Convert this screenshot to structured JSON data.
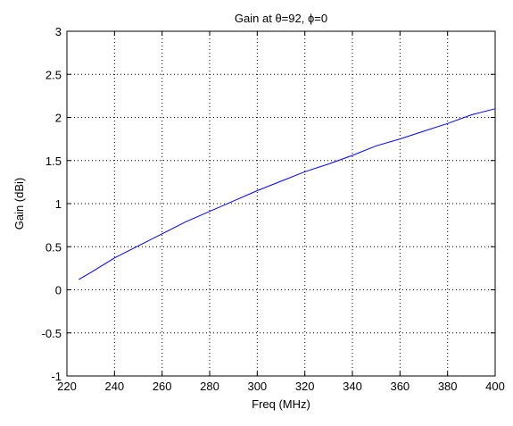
{
  "chart_data": {
    "type": "line",
    "title": "Gain at θ=92, ϕ=0",
    "xlabel": "Freq (MHz)",
    "ylabel": "Gain (dBi)",
    "xlim": [
      220,
      400
    ],
    "ylim": [
      -1,
      3
    ],
    "xticks": [
      220,
      240,
      260,
      280,
      300,
      320,
      340,
      360,
      380,
      400
    ],
    "yticks": [
      -1,
      -0.5,
      0,
      0.5,
      1,
      1.5,
      2,
      2.5,
      3
    ],
    "xtick_labels": [
      "220",
      "240",
      "260",
      "280",
      "300",
      "320",
      "340",
      "360",
      "380",
      "400"
    ],
    "ytick_labels": [
      "-1",
      "-0.5",
      "0",
      "0.5",
      "1",
      "1.5",
      "2",
      "2.5",
      "3"
    ],
    "grid": true,
    "line_color": "#0000ff",
    "series": [
      {
        "x": [
          225,
          230,
          240,
          250,
          260,
          270,
          280,
          290,
          300,
          310,
          320,
          330,
          340,
          350,
          360,
          370,
          380,
          390,
          400
        ],
        "y": [
          0.12,
          0.2,
          0.37,
          0.51,
          0.65,
          0.79,
          0.91,
          1.03,
          1.15,
          1.26,
          1.37,
          1.46,
          1.56,
          1.67,
          1.75,
          1.84,
          1.93,
          2.03,
          2.1
        ]
      }
    ]
  }
}
